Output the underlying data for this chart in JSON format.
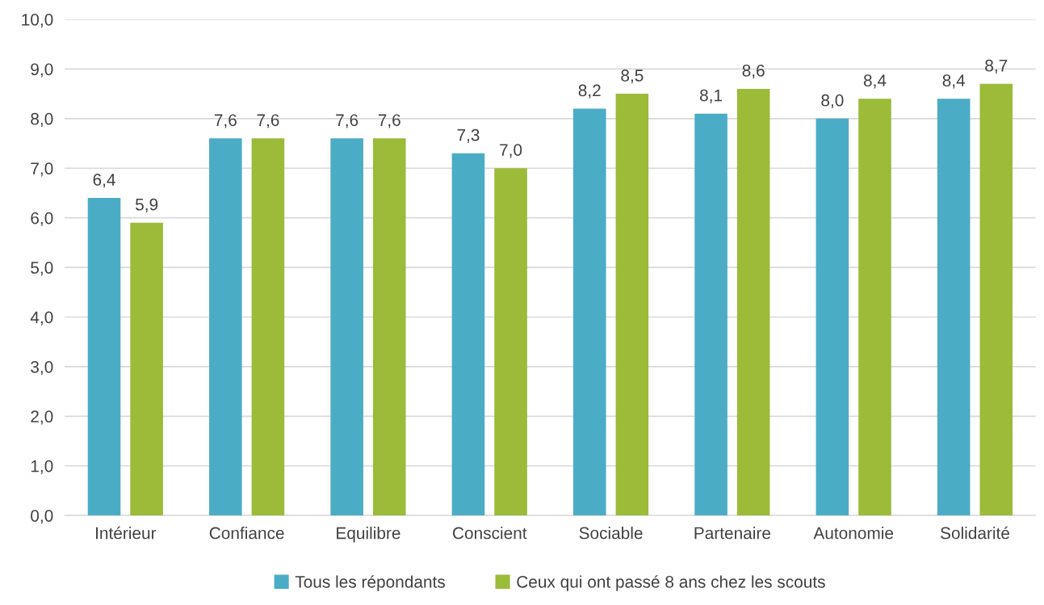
{
  "chart_data": {
    "type": "bar",
    "categories": [
      "Intérieur",
      "Confiance",
      "Equilibre",
      "Conscient",
      "Sociable",
      "Partenaire",
      "Autonomie",
      "Solidarité"
    ],
    "series": [
      {
        "name": "Tous les répondants",
        "color": "#4bacc6",
        "values": [
          6.4,
          7.6,
          7.6,
          7.3,
          8.2,
          8.1,
          8.0,
          8.4
        ],
        "value_labels": [
          "6,4",
          "7,6",
          "7,6",
          "7,3",
          "8,2",
          "8,1",
          "8,0",
          "8,4"
        ]
      },
      {
        "name": "Ceux qui ont passé 8 ans chez les scouts",
        "color": "#9bbb39",
        "values": [
          5.9,
          7.6,
          7.6,
          7.0,
          8.5,
          8.6,
          8.4,
          8.7
        ],
        "value_labels": [
          "5,9",
          "7,6",
          "7,6",
          "7,0",
          "8,5",
          "8,6",
          "8,4",
          "8,7"
        ]
      }
    ],
    "ylim": [
      0,
      10
    ],
    "yticks": [
      {
        "value": 0,
        "label": "0,0"
      },
      {
        "value": 1,
        "label": "1,0"
      },
      {
        "value": 2,
        "label": "2,0"
      },
      {
        "value": 3,
        "label": "3,0"
      },
      {
        "value": 4,
        "label": "4,0"
      },
      {
        "value": 5,
        "label": "5,0"
      },
      {
        "value": 6,
        "label": "6,0"
      },
      {
        "value": 7,
        "label": "7,0"
      },
      {
        "value": 8,
        "label": "8,0"
      },
      {
        "value": 9,
        "label": "9,0"
      },
      {
        "value": 10,
        "label": "10,0"
      }
    ],
    "grid": "y",
    "legend": "bottom"
  }
}
